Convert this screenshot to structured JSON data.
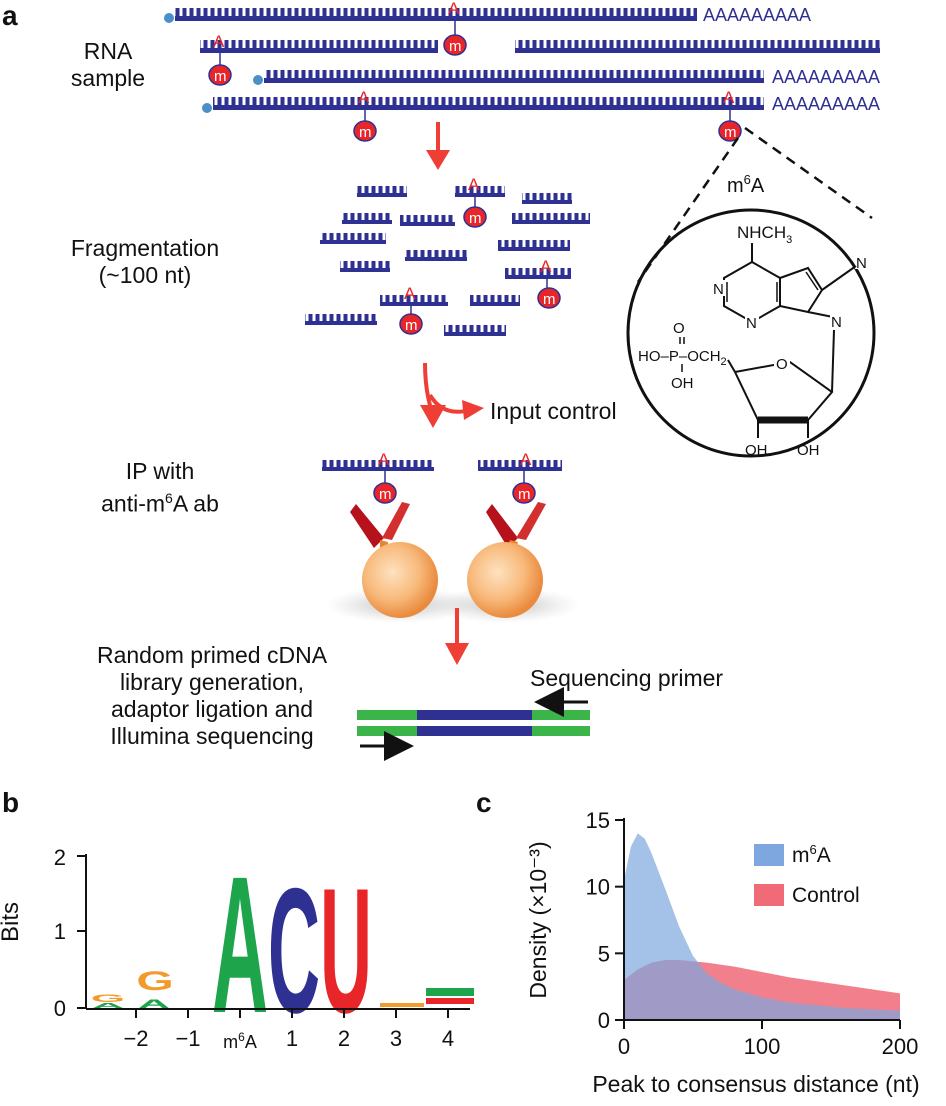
{
  "panels": {
    "a": "a",
    "b": "b",
    "c": "c"
  },
  "panel_a": {
    "rna_sample_label": [
      "RNA",
      "sample"
    ],
    "poly_a_tail": "AAAAAAAAA",
    "adenosine_letter": "A",
    "methyl_letter": "m",
    "m6a_title_base": "m",
    "m6a_title_sup": "6",
    "m6a_title_end": "A",
    "fragmentation_label": [
      "Fragmentation",
      "(~100 nt)"
    ],
    "input_control_label": "Input control",
    "ip_label_line1": "IP with",
    "ip_label_line2_base": "anti-m",
    "ip_label_line2_sup": "6",
    "ip_label_line2_end": "A ab",
    "library_label": [
      "Random primed cDNA",
      "library generation,",
      "adaptor ligation and",
      "Illumina sequencing"
    ],
    "sequencing_primer_label": "Sequencing primer",
    "molecule": {
      "nhch3": "NHCH",
      "nhch3_sub": "3",
      "n": "N",
      "o": "O",
      "p": "P",
      "ho_p": "HO",
      "och2": "OCH",
      "och2_sub": "2",
      "oh": "OH"
    },
    "colors": {
      "rna": "#2e3192",
      "mod": "#e8262a",
      "arrow": "#ef3e36",
      "adaptor": "#3bb54a",
      "cap": "#4a90c8"
    }
  },
  "panel_b": {
    "ylabel": "Bits",
    "y_ticks": [
      "0",
      "1",
      "2"
    ],
    "x_ticks": [
      "−2",
      "−1",
      "m6A_placeholder",
      "1",
      "2",
      "3",
      "4"
    ],
    "x_tick_m6a_base": "m",
    "x_tick_m6a_sup": "6",
    "x_tick_m6a_end": "A",
    "logo_letters": [
      "A",
      "C",
      "U",
      "G",
      "A",
      "G",
      "A"
    ],
    "logo_heights_bits": [
      1.7,
      1.52,
      1.52,
      0.3,
      0.1,
      0.3,
      0.1
    ],
    "colors": {
      "A": "#1ea54b",
      "C": "#2e3192",
      "U": "#e8262a",
      "G": "#f39a2d"
    }
  },
  "chart_data": {
    "type": "area",
    "xlabel": "Peak to consensus distance (nt)",
    "ylabel": "Density (×10⁻³)",
    "xlim": [
      0,
      200
    ],
    "ylim": [
      0,
      15
    ],
    "x_ticks": [
      "0",
      "100",
      "200"
    ],
    "y_ticks": [
      "0",
      "5",
      "10",
      "15"
    ],
    "legend_placement": "top-right",
    "series": [
      {
        "name": "m6A",
        "legend_base": "m",
        "legend_sup": "6",
        "legend_end": "A",
        "color": "#7da7de",
        "x": [
          0,
          5,
          10,
          15,
          20,
          30,
          40,
          50,
          60,
          70,
          80,
          100,
          120,
          140,
          160,
          180,
          200
        ],
        "y": [
          10.5,
          13.0,
          14.0,
          13.6,
          12.5,
          9.8,
          7.0,
          4.8,
          3.5,
          2.8,
          2.3,
          1.7,
          1.3,
          1.1,
          0.9,
          0.8,
          0.7
        ]
      },
      {
        "name": "Control",
        "color": "#f06a78",
        "x": [
          0,
          10,
          20,
          30,
          40,
          60,
          80,
          100,
          120,
          140,
          160,
          180,
          200
        ],
        "y": [
          3.0,
          3.8,
          4.3,
          4.5,
          4.5,
          4.3,
          4.0,
          3.6,
          3.2,
          2.9,
          2.6,
          2.3,
          2.0
        ]
      }
    ]
  }
}
